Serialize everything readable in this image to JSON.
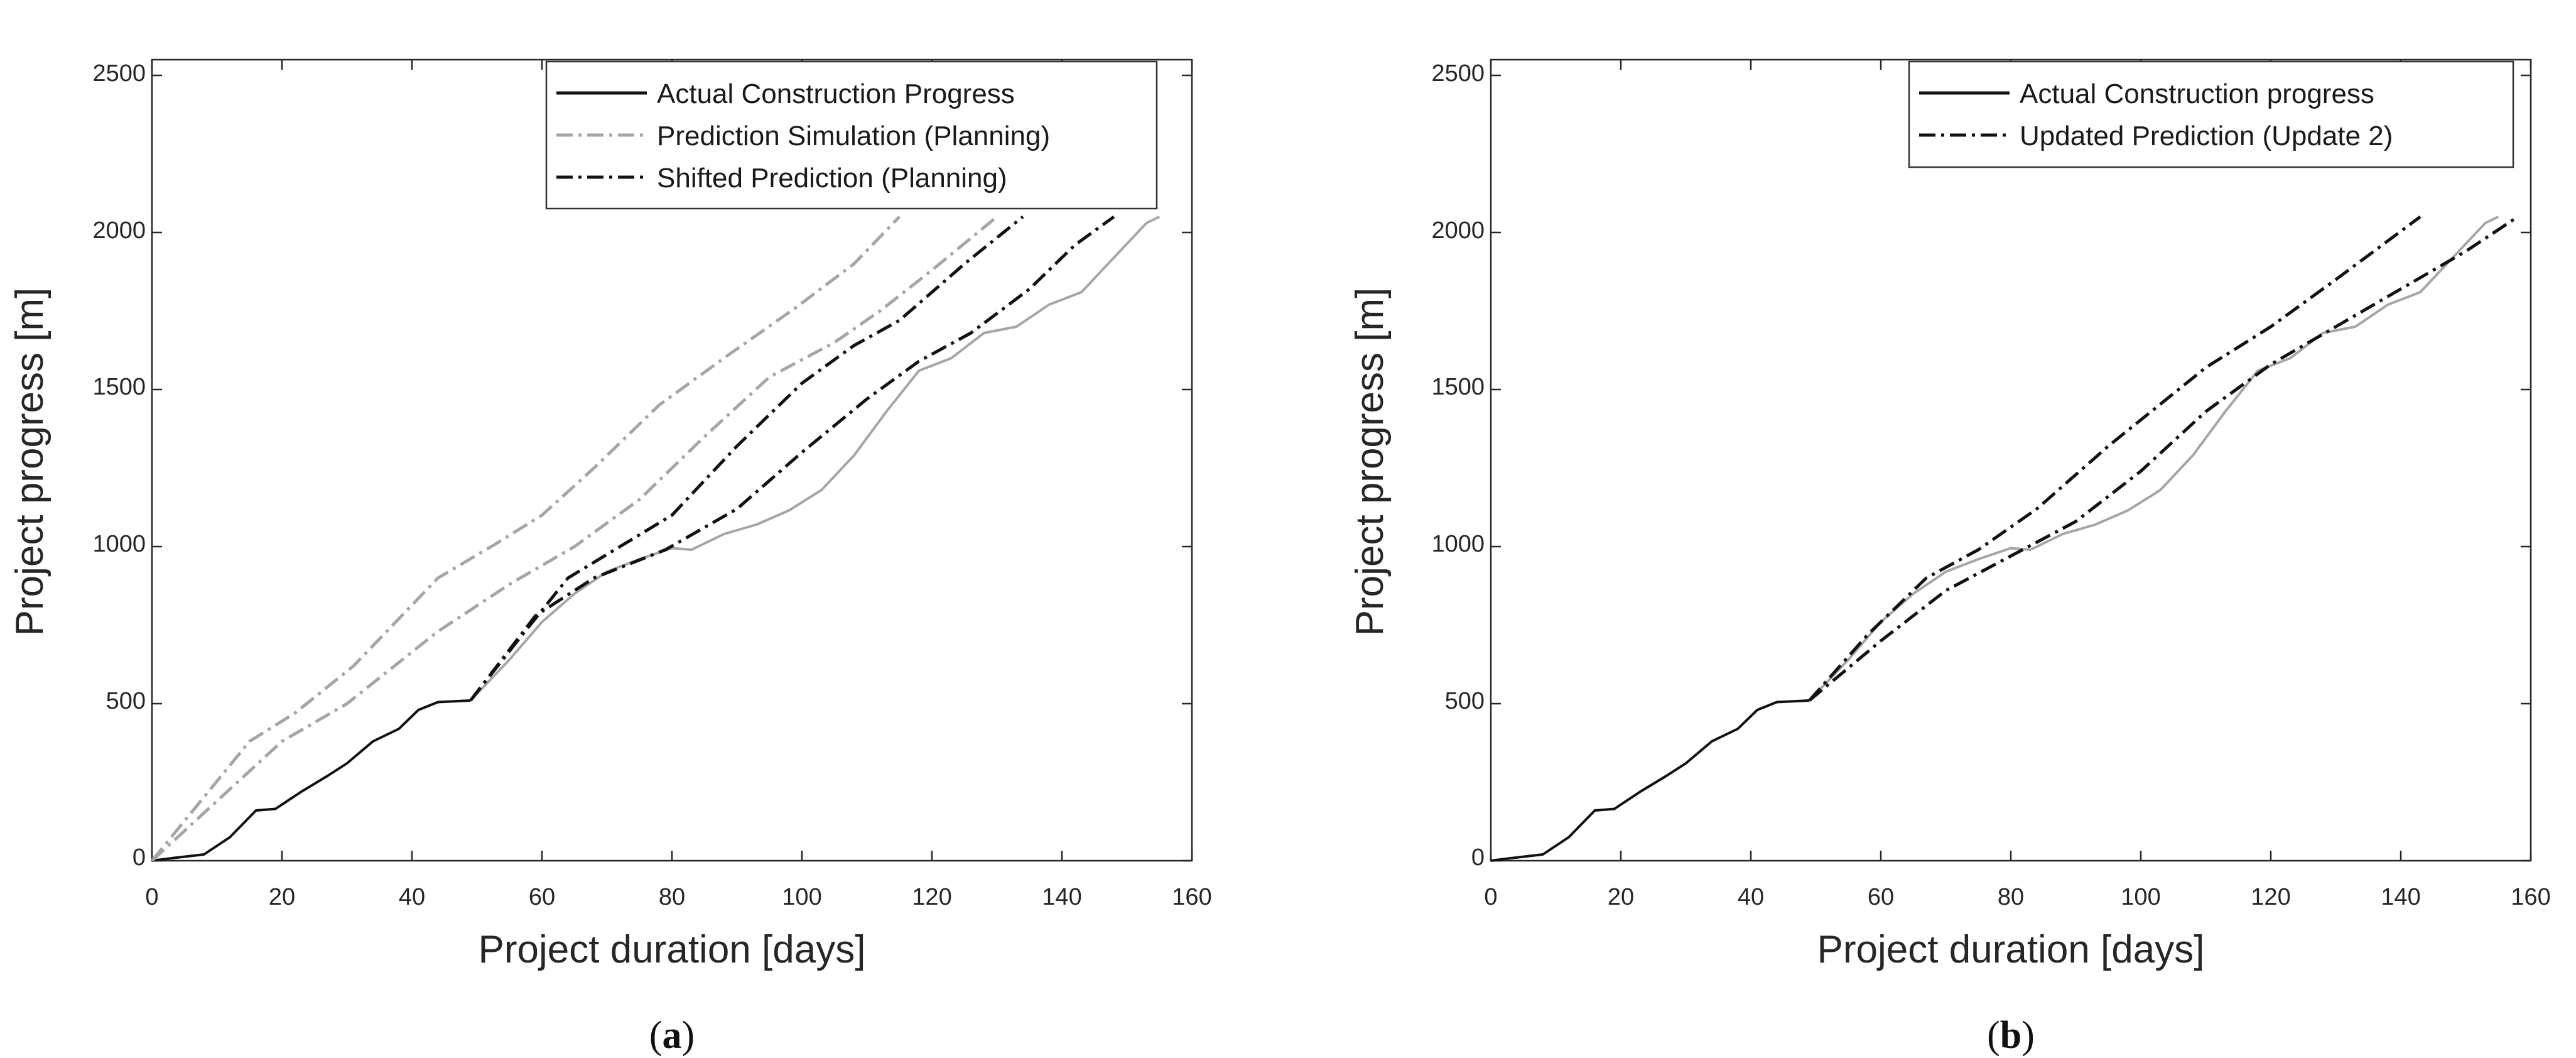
{
  "colors": {
    "actual": "#a6a6a6",
    "planning": "#a6a6a6",
    "prediction": "#111111",
    "axis": "#262626",
    "background": "#ffffff"
  },
  "chart_data": [
    {
      "type": "line",
      "caption": {
        "open": "(",
        "letter": "a",
        "close": ")"
      },
      "xlabel": "Project duration [days]",
      "ylabel": "Project progress [m]",
      "xlim": [
        0,
        160
      ],
      "ylim": [
        0,
        2550
      ],
      "xticks": [
        "0",
        "20",
        "40",
        "60",
        "80",
        "100",
        "120",
        "140",
        "160"
      ],
      "xtick_values": [
        0,
        20,
        40,
        60,
        80,
        100,
        120,
        140,
        160
      ],
      "yticks": [
        "0",
        "500",
        "1000",
        "1500",
        "2000",
        "2500"
      ],
      "ytick_values": [
        0,
        500,
        1000,
        1500,
        2000,
        2500
      ],
      "legend_position": "top-right",
      "legend": [
        {
          "label": "Actual Construction Progress",
          "line": "solid",
          "color": "#111111"
        },
        {
          "label": "Prediction Simulation (Planning)",
          "line": "dash-dot",
          "color": "#a6a6a6"
        },
        {
          "label": "Shifted Prediction (Planning)",
          "line": "dash-dot",
          "color": "#111111"
        }
      ],
      "series": [
        {
          "name": "Actual Construction Progress (to date)",
          "style": "solid",
          "color": "#111111",
          "x": [
            0,
            3,
            8,
            12,
            16,
            19,
            23,
            27,
            30,
            34,
            38,
            41,
            44,
            49
          ],
          "y": [
            0,
            8,
            20,
            75,
            160,
            165,
            220,
            270,
            310,
            380,
            420,
            480,
            505,
            510
          ]
        },
        {
          "name": "Actual Construction Progress (remaining)",
          "style": "solid",
          "color": "#a6a6a6",
          "x": [
            49,
            55,
            60,
            65,
            70,
            75,
            80,
            83,
            88,
            93,
            98,
            103,
            108,
            113,
            118,
            123,
            128,
            133,
            138,
            143,
            148,
            153,
            155
          ],
          "y": [
            510,
            640,
            760,
            850,
            920,
            960,
            995,
            990,
            1040,
            1070,
            1115,
            1180,
            1290,
            1430,
            1560,
            1600,
            1680,
            1700,
            1770,
            1810,
            1920,
            2030,
            2050
          ]
        },
        {
          "name": "Prediction Simulation (Planning) upper",
          "style": "dash-dot",
          "color": "#a6a6a6",
          "x": [
            0,
            15,
            22,
            31,
            44,
            53,
            60,
            68,
            78,
            88,
            99,
            108,
            115
          ],
          "y": [
            0,
            380,
            470,
            620,
            900,
            1010,
            1100,
            1250,
            1450,
            1600,
            1760,
            1900,
            2050
          ]
        },
        {
          "name": "Prediction Simulation (Planning) lower",
          "style": "dash-dot",
          "color": "#a6a6a6",
          "x": [
            0,
            20,
            30,
            44,
            55,
            65,
            75,
            85,
            95,
            105,
            112,
            120,
            130
          ],
          "y": [
            0,
            380,
            500,
            730,
            880,
            1000,
            1150,
            1350,
            1540,
            1650,
            1750,
            1880,
            2050
          ]
        },
        {
          "name": "Shifted Prediction (Planning) upper",
          "style": "dash-dot",
          "color": "#111111",
          "x": [
            49,
            57,
            64,
            72,
            80,
            90,
            100,
            108,
            115,
            125,
            134
          ],
          "y": [
            510,
            720,
            900,
            1000,
            1100,
            1320,
            1520,
            1640,
            1720,
            1900,
            2050
          ]
        },
        {
          "name": "Shifted Prediction (Planning) lower",
          "style": "dash-dot",
          "color": "#111111",
          "x": [
            49,
            59,
            68,
            79,
            90,
            100,
            110,
            118,
            126,
            135,
            142,
            148
          ],
          "y": [
            510,
            780,
            900,
            990,
            1120,
            1300,
            1470,
            1590,
            1680,
            1820,
            1960,
            2050
          ]
        }
      ]
    },
    {
      "type": "line",
      "caption": {
        "open": "(",
        "letter": "b",
        "close": ")"
      },
      "xlabel": "Project duration [days]",
      "ylabel": "Project progress [m]",
      "xlim": [
        0,
        160
      ],
      "ylim": [
        0,
        2550
      ],
      "xticks": [
        "0",
        "20",
        "40",
        "60",
        "80",
        "100",
        "120",
        "140",
        "160"
      ],
      "xtick_values": [
        0,
        20,
        40,
        60,
        80,
        100,
        120,
        140,
        160
      ],
      "yticks": [
        "0",
        "500",
        "1000",
        "1500",
        "2000",
        "2500"
      ],
      "ytick_values": [
        0,
        500,
        1000,
        1500,
        2000,
        2500
      ],
      "legend_position": "top-right",
      "legend": [
        {
          "label": "Actual Construction progress",
          "line": "solid",
          "color": "#111111"
        },
        {
          "label": "Updated Prediction (Update 2)",
          "line": "dash-dot",
          "color": "#111111"
        }
      ],
      "series": [
        {
          "name": "Actual Construction progress (to date)",
          "style": "solid",
          "color": "#111111",
          "x": [
            0,
            3,
            8,
            12,
            16,
            19,
            23,
            27,
            30,
            34,
            38,
            41,
            44,
            49
          ],
          "y": [
            0,
            8,
            20,
            75,
            160,
            165,
            220,
            270,
            310,
            380,
            420,
            480,
            505,
            510
          ]
        },
        {
          "name": "Actual Construction progress (remaining)",
          "style": "solid",
          "color": "#a6a6a6",
          "x": [
            49,
            55,
            60,
            65,
            70,
            75,
            80,
            83,
            88,
            93,
            98,
            103,
            108,
            113,
            118,
            123,
            128,
            133,
            138,
            143,
            148,
            153,
            155
          ],
          "y": [
            510,
            640,
            760,
            850,
            920,
            960,
            995,
            990,
            1040,
            1070,
            1115,
            1180,
            1290,
            1430,
            1560,
            1600,
            1680,
            1700,
            1770,
            1810,
            1920,
            2030,
            2050
          ]
        },
        {
          "name": "Updated Prediction (Update 2) upper",
          "style": "dash-dot",
          "color": "#111111",
          "x": [
            49,
            58,
            67,
            75,
            84,
            95,
            110,
            120,
            130,
            143
          ],
          "y": [
            510,
            720,
            900,
            990,
            1120,
            1320,
            1570,
            1700,
            1850,
            2050
          ]
        },
        {
          "name": "Updated Prediction (Update 2) lower",
          "style": "dash-dot",
          "color": "#111111",
          "x": [
            49,
            60,
            70,
            80,
            90,
            100,
            110,
            120,
            130,
            140,
            150,
            158
          ],
          "y": [
            510,
            700,
            860,
            970,
            1080,
            1240,
            1430,
            1580,
            1700,
            1820,
            1940,
            2050
          ]
        }
      ]
    }
  ]
}
